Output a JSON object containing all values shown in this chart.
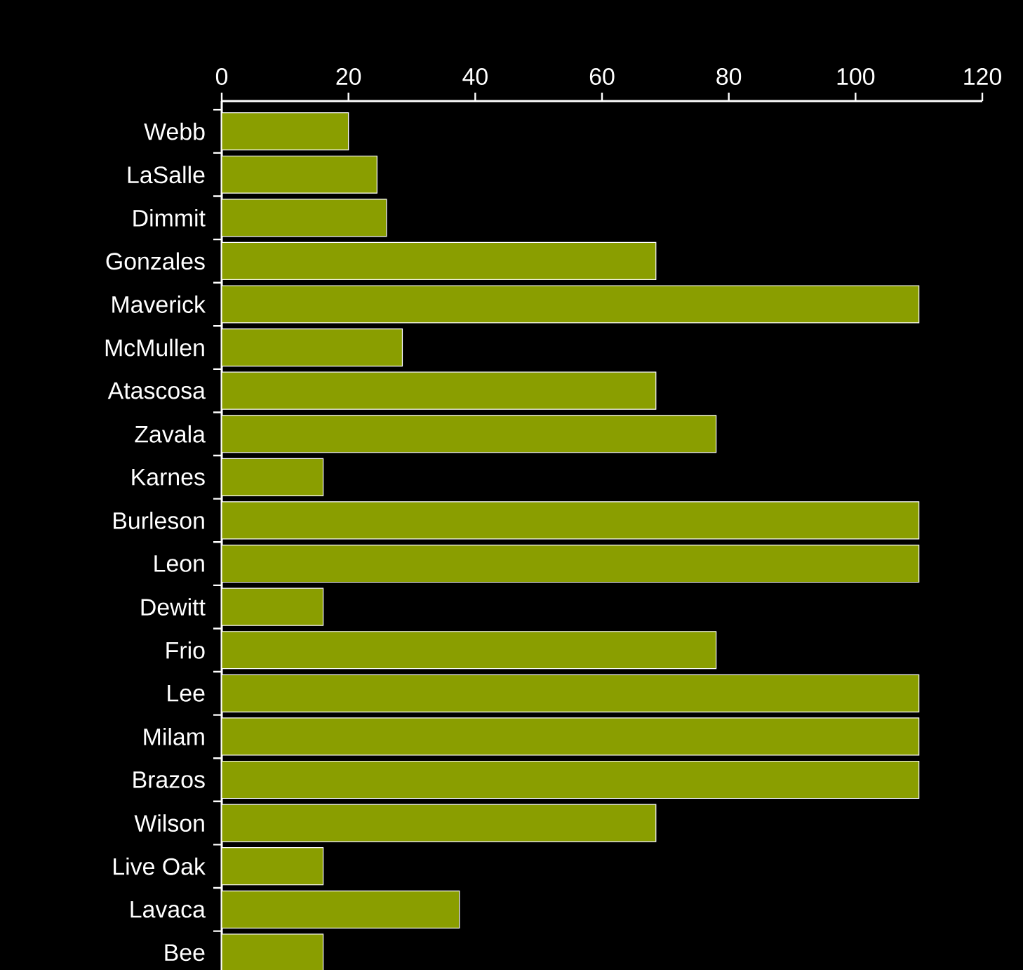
{
  "chart_data": {
    "type": "bar",
    "orientation": "horizontal",
    "color": "#8a9e00",
    "categories": [
      "Webb",
      "LaSalle",
      "Dimmit",
      "Gonzales",
      "Maverick",
      "McMullen",
      "Atascosa",
      "Zavala",
      "Karnes",
      "Burleson",
      "Leon",
      "Dewitt",
      "Frio",
      "Lee",
      "Milam",
      "Brazos",
      "Wilson",
      "Live Oak",
      "Lavaca",
      "Bee"
    ],
    "values": [
      20,
      24.5,
      26,
      68.5,
      110,
      28.5,
      68.5,
      78,
      16,
      110,
      110,
      16,
      78,
      110,
      110,
      110,
      68.5,
      16,
      37.5,
      16
    ],
    "xlim": [
      0,
      120
    ],
    "xticks": [
      0,
      20,
      40,
      60,
      80,
      100,
      120
    ]
  }
}
